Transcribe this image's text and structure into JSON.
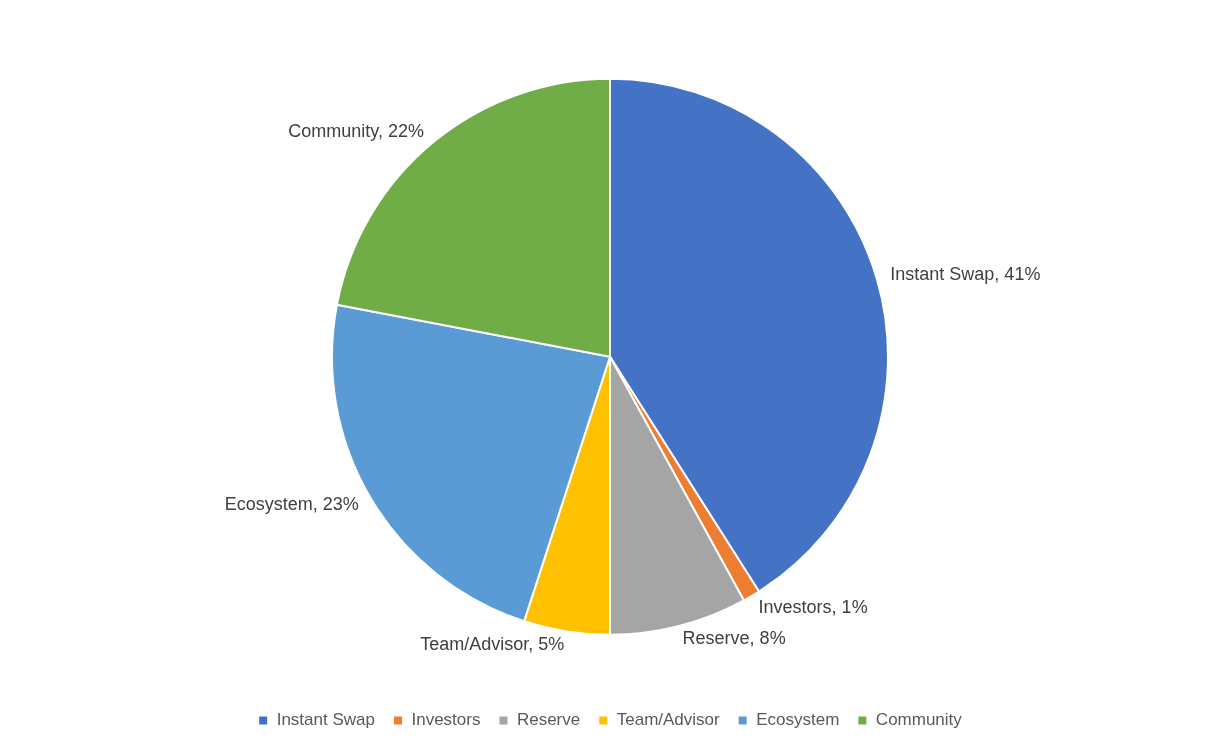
{
  "chart_data": {
    "type": "pie",
    "categories": [
      "Instant Swap",
      "Investors",
      "Reserve",
      "Team/Advisor",
      "Ecosystem",
      "Community"
    ],
    "values": [
      41,
      1,
      8,
      5,
      23,
      22
    ],
    "colors": [
      "#4472c4",
      "#ed7d31",
      "#a5a5a5",
      "#ffc000",
      "#5b9bd5",
      "#70ad47"
    ],
    "value_labels": [
      "Instant Swap, 41%",
      "Investors, 1%",
      "Reserve, 8%",
      "Team/Advisor, 5%",
      "Ecosystem, 23%",
      "Community, 22%"
    ],
    "legend": "bottom"
  }
}
